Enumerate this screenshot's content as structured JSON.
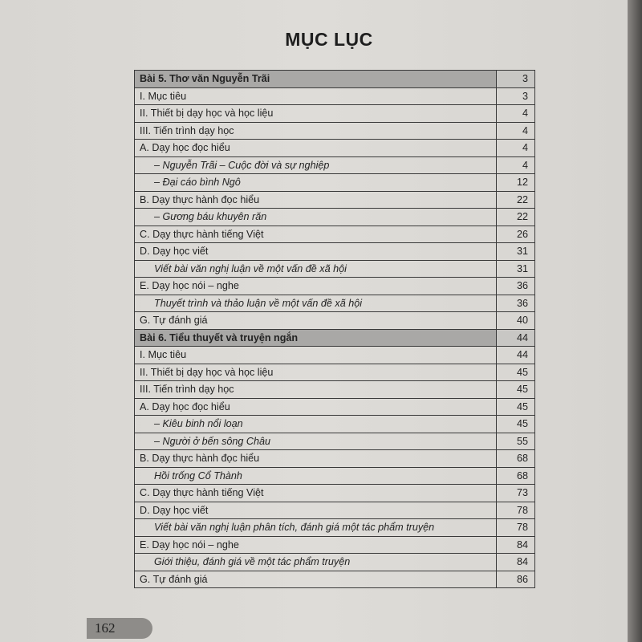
{
  "title": "MỤC LỤC",
  "page_number": "162",
  "toc": [
    {
      "label": "Bài 5. Thơ văn Nguyễn Trãi",
      "page": "3",
      "type": "hdr"
    },
    {
      "label": "I. Mục tiêu",
      "page": "3",
      "type": "row"
    },
    {
      "label": "II. Thiết bị dạy học và học liệu",
      "page": "4",
      "type": "row"
    },
    {
      "label": "III. Tiến trình dạy học",
      "page": "4",
      "type": "row"
    },
    {
      "label": "A. Dạy học đọc hiểu",
      "page": "4",
      "type": "row"
    },
    {
      "label": "– Nguyễn Trãi – Cuộc đời và sự nghiệp",
      "page": "4",
      "type": "sub"
    },
    {
      "label": "– Đại cáo bình Ngô",
      "page": "12",
      "type": "sub"
    },
    {
      "label": "B. Dạy thực hành đọc hiểu",
      "page": "22",
      "type": "row"
    },
    {
      "label": "– Gương báu khuyên răn",
      "page": "22",
      "type": "sub"
    },
    {
      "label": "C. Dạy thực hành tiếng Việt",
      "page": "26",
      "type": "row"
    },
    {
      "label": "D. Dạy học viết",
      "page": "31",
      "type": "row"
    },
    {
      "label": "Viết bài văn nghị luận về một vấn đề xã hội",
      "page": "31",
      "type": "sub"
    },
    {
      "label": "E. Dạy học nói – nghe",
      "page": "36",
      "type": "row"
    },
    {
      "label": "Thuyết trình và thảo luận về một vấn đề xã hội",
      "page": "36",
      "type": "sub"
    },
    {
      "label": "G. Tự đánh giá",
      "page": "40",
      "type": "row"
    },
    {
      "label": "Bài 6. Tiểu thuyết và truyện ngắn",
      "page": "44",
      "type": "hdr"
    },
    {
      "label": "I. Mục tiêu",
      "page": "44",
      "type": "row"
    },
    {
      "label": "II. Thiết bị dạy học và học liệu",
      "page": "45",
      "type": "row"
    },
    {
      "label": "III. Tiến trình dạy học",
      "page": "45",
      "type": "row"
    },
    {
      "label": "A. Dạy học đọc hiểu",
      "page": "45",
      "type": "row"
    },
    {
      "label": "– Kiêu binh nổi loạn",
      "page": "45",
      "type": "sub"
    },
    {
      "label": "– Người ở bến sông Châu",
      "page": "55",
      "type": "sub"
    },
    {
      "label": "B. Dạy thực hành đọc hiểu",
      "page": "68",
      "type": "row"
    },
    {
      "label": "Hồi trống Cổ Thành",
      "page": "68",
      "type": "sub"
    },
    {
      "label": "C. Dạy thực hành tiếng Việt",
      "page": "73",
      "type": "row"
    },
    {
      "label": "D. Dạy học viết",
      "page": "78",
      "type": "row"
    },
    {
      "label": "Viết bài văn nghị luận phân tích, đánh giá một tác phẩm truyện",
      "page": "78",
      "type": "sub"
    },
    {
      "label": "E. Dạy học nói – nghe",
      "page": "84",
      "type": "row"
    },
    {
      "label": "Giới thiệu, đánh giá về một tác phẩm truyện",
      "page": "84",
      "type": "sub"
    },
    {
      "label": "G. Tự đánh giá",
      "page": "86",
      "type": "row"
    }
  ]
}
